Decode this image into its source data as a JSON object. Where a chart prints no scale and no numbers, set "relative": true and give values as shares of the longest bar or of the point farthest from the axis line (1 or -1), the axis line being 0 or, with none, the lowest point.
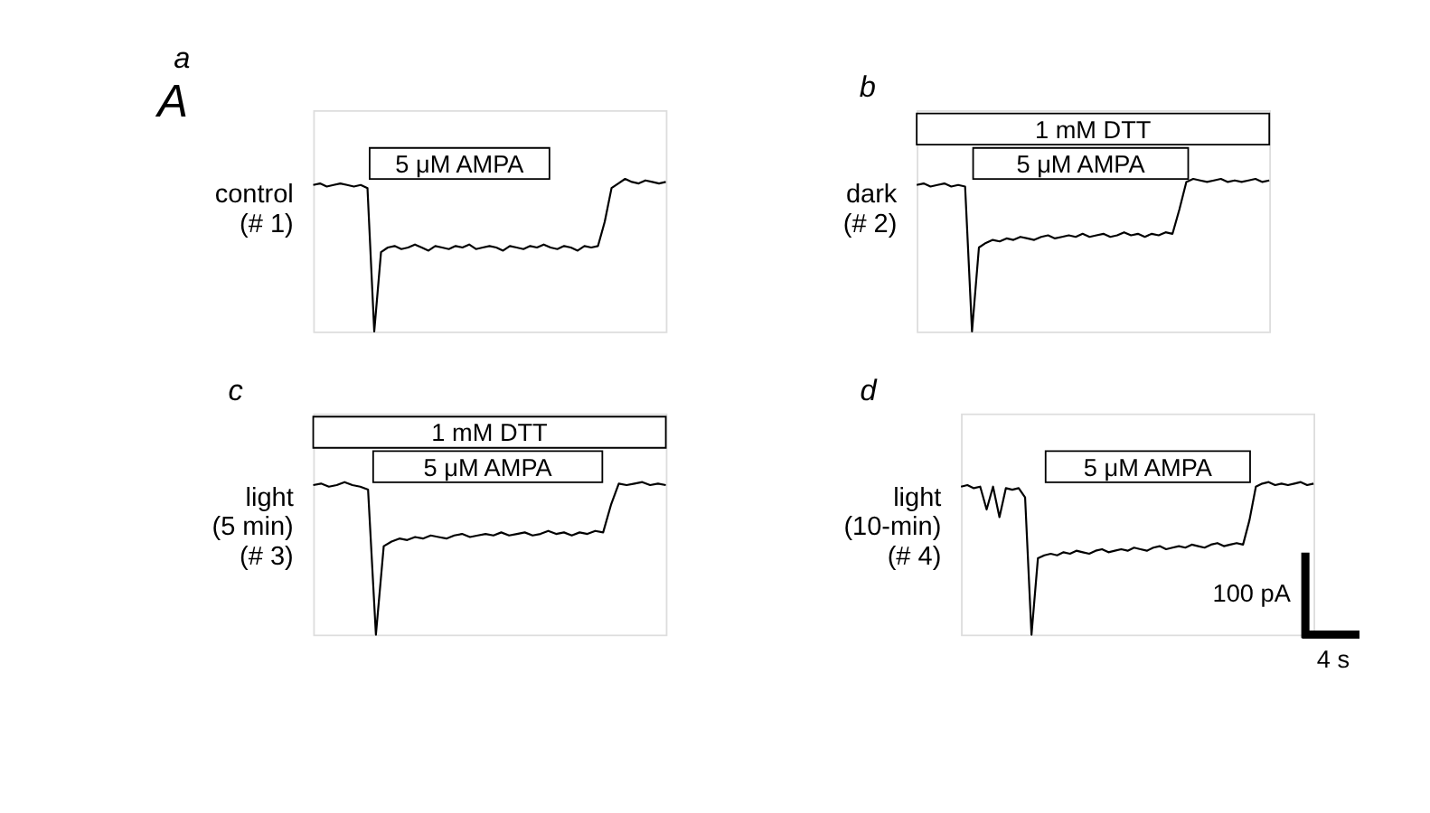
{
  "chart_data": [
    {
      "type": "line",
      "relative": true,
      "title": "a",
      "ylabel": "control\n(# 1)",
      "annotations": [
        "A",
        "5 μM AMPA"
      ],
      "color": "#000000",
      "categories": [
        null,
        null,
        null,
        null,
        null,
        null,
        null,
        null,
        null,
        null,
        null,
        null,
        null,
        null,
        null,
        null,
        null,
        null,
        null,
        null,
        null,
        null,
        null,
        null,
        null,
        null,
        null,
        null,
        null,
        null,
        null,
        null,
        null,
        null,
        null,
        null,
        null,
        null,
        null,
        null,
        null,
        null,
        null,
        null,
        null,
        null,
        null,
        null,
        null,
        null,
        null,
        null,
        null
      ],
      "values": [
        0.96,
        0.97,
        0.95,
        0.96,
        0.97,
        0.96,
        0.95,
        0.96,
        0.94,
        0,
        0.52,
        0.55,
        0.56,
        0.54,
        0.55,
        0.57,
        0.55,
        0.53,
        0.56,
        0.55,
        0.54,
        0.56,
        0.55,
        0.57,
        0.54,
        0.55,
        0.56,
        0.55,
        0.53,
        0.56,
        0.55,
        0.54,
        0.56,
        0.55,
        0.57,
        0.55,
        0.54,
        0.56,
        0.55,
        0.53,
        0.56,
        0.55,
        0.56,
        0.72,
        0.94,
        0.97,
        1.0,
        0.98,
        0.97,
        0.99,
        0.98,
        0.97,
        0.98
      ]
    },
    {
      "type": "line",
      "relative": true,
      "title": "b",
      "ylabel": "dark\n(# 2)",
      "annotations": [
        "1 mM DTT",
        "5 μM AMPA"
      ],
      "color": "#000000",
      "categories": [
        null,
        null,
        null,
        null,
        null,
        null,
        null,
        null,
        null,
        null,
        null,
        null,
        null,
        null,
        null,
        null,
        null,
        null,
        null,
        null,
        null,
        null,
        null,
        null,
        null,
        null,
        null,
        null,
        null,
        null,
        null,
        null,
        null,
        null,
        null,
        null,
        null,
        null,
        null,
        null,
        null,
        null,
        null,
        null,
        null,
        null,
        null,
        null,
        null,
        null,
        null,
        null
      ],
      "values": [
        0.96,
        0.97,
        0.95,
        0.96,
        0.97,
        0.95,
        0.96,
        0.95,
        0,
        0.55,
        0.58,
        0.6,
        0.59,
        0.61,
        0.6,
        0.62,
        0.61,
        0.6,
        0.62,
        0.63,
        0.61,
        0.62,
        0.63,
        0.62,
        0.64,
        0.62,
        0.63,
        0.64,
        0.62,
        0.63,
        0.65,
        0.63,
        0.64,
        0.62,
        0.64,
        0.63,
        0.65,
        0.64,
        0.8,
        0.98,
        1.0,
        0.99,
        0.98,
        0.99,
        1.0,
        0.98,
        0.99,
        0.98,
        0.99,
        1.0,
        0.98,
        0.99
      ]
    },
    {
      "type": "line",
      "relative": true,
      "title": "c",
      "ylabel": "light\n(5 min)\n(# 3)",
      "annotations": [
        "1 mM DTT",
        "5 μM AMPA"
      ],
      "color": "#000000",
      "categories": [
        null,
        null,
        null,
        null,
        null,
        null,
        null,
        null,
        null,
        null,
        null,
        null,
        null,
        null,
        null,
        null,
        null,
        null,
        null,
        null,
        null,
        null,
        null,
        null,
        null,
        null,
        null,
        null,
        null,
        null,
        null,
        null,
        null,
        null,
        null,
        null,
        null,
        null,
        null,
        null,
        null,
        null,
        null,
        null,
        null,
        null
      ],
      "values": [
        0.98,
        0.99,
        0.97,
        0.98,
        1.0,
        0.98,
        0.97,
        0.95,
        0,
        0.58,
        0.61,
        0.63,
        0.62,
        0.64,
        0.63,
        0.65,
        0.64,
        0.63,
        0.65,
        0.66,
        0.64,
        0.65,
        0.66,
        0.65,
        0.67,
        0.65,
        0.66,
        0.67,
        0.65,
        0.66,
        0.68,
        0.66,
        0.67,
        0.65,
        0.67,
        0.66,
        0.68,
        0.67,
        0.85,
        0.99,
        0.98,
        0.99,
        1.0,
        0.98,
        0.99,
        0.98
      ]
    },
    {
      "type": "line",
      "relative": true,
      "title": "d",
      "ylabel": "light\n(10-min)\n(# 4)",
      "annotations": [
        "5 μM AMPA",
        "100 pA",
        "4 s"
      ],
      "color": "#000000",
      "categories": [
        null,
        null,
        null,
        null,
        null,
        null,
        null,
        null,
        null,
        null,
        null,
        null,
        null,
        null,
        null,
        null,
        null,
        null,
        null,
        null,
        null,
        null,
        null,
        null,
        null,
        null,
        null,
        null,
        null,
        null,
        null,
        null,
        null,
        null,
        null,
        null,
        null,
        null,
        null,
        null,
        null,
        null,
        null,
        null,
        null,
        null,
        null,
        null,
        null,
        null,
        null,
        null,
        null,
        null,
        null,
        null
      ],
      "values": [
        0.97,
        0.98,
        0.96,
        0.97,
        0.82,
        0.97,
        0.77,
        0.96,
        0.95,
        0.96,
        0.9,
        0,
        0.5,
        0.52,
        0.53,
        0.52,
        0.54,
        0.53,
        0.55,
        0.54,
        0.53,
        0.55,
        0.56,
        0.54,
        0.55,
        0.56,
        0.55,
        0.57,
        0.56,
        0.55,
        0.57,
        0.58,
        0.56,
        0.57,
        0.58,
        0.57,
        0.59,
        0.58,
        0.57,
        0.59,
        0.6,
        0.58,
        0.59,
        0.6,
        0.59,
        0.75,
        0.97,
        0.99,
        1.0,
        0.98,
        0.99,
        0.98,
        0.99,
        1.0,
        0.98,
        0.99
      ]
    }
  ]
}
